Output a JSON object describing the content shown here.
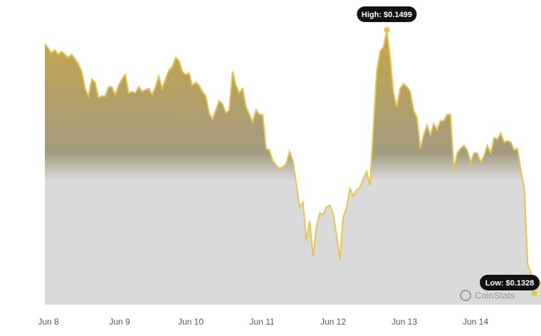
{
  "chart_data": {
    "type": "area",
    "brand": "CoinStats",
    "high": {
      "label": "High: $0.1499",
      "value": 0.1499
    },
    "low": {
      "label": "Low: $0.1328",
      "value": 0.1328
    },
    "line_color": "#e8c44c",
    "xticks": [
      "Jun 8",
      "Jun 9",
      "Jun 10",
      "Jun 11",
      "Jun 12",
      "Jun 13",
      "Jun 14"
    ],
    "values": [
      0.149,
      0.1487,
      0.1484,
      0.1486,
      0.1483,
      0.1485,
      0.1483,
      0.1481,
      0.1483,
      0.148,
      0.1477,
      0.1472,
      0.1461,
      0.1456,
      0.1467,
      0.1465,
      0.1455,
      0.1456,
      0.1456,
      0.1462,
      0.1462,
      0.1457,
      0.1463,
      0.1467,
      0.147,
      0.1458,
      0.1459,
      0.1458,
      0.1462,
      0.1459,
      0.146,
      0.1461,
      0.1457,
      0.1462,
      0.1469,
      0.1461,
      0.1467,
      0.1473,
      0.1475,
      0.1481,
      0.1479,
      0.1472,
      0.147,
      0.1471,
      0.1463,
      0.1465,
      0.1463,
      0.1459,
      0.1456,
      0.1445,
      0.1441,
      0.1447,
      0.1453,
      0.1451,
      0.1445,
      0.1447,
      0.1472,
      0.1463,
      0.1458,
      0.1461,
      0.1449,
      0.1444,
      0.1439,
      0.1447,
      0.1444,
      0.1444,
      0.1422,
      0.1421,
      0.1414,
      0.1411,
      0.1409,
      0.141,
      0.1412,
      0.142,
      0.1414,
      0.1399,
      0.1384,
      0.1387,
      0.1362,
      0.1375,
      0.1352,
      0.1371,
      0.138,
      0.1379,
      0.1384,
      0.1385,
      0.138,
      0.1366,
      0.135,
      0.1377,
      0.1384,
      0.1396,
      0.1391,
      0.1395,
      0.1397,
      0.1402,
      0.1407,
      0.1398,
      0.1435,
      0.1472,
      0.1485,
      0.1488,
      0.1499,
      0.1481,
      0.1458,
      0.1449,
      0.1461,
      0.1464,
      0.1462,
      0.1459,
      0.1447,
      0.1442,
      0.1422,
      0.1431,
      0.1437,
      0.1431,
      0.1438,
      0.1434,
      0.144,
      0.144,
      0.1444,
      0.1444,
      0.1409,
      0.1419,
      0.1422,
      0.1424,
      0.1421,
      0.1413,
      0.1419,
      0.1419,
      0.1413,
      0.1417,
      0.1424,
      0.1419,
      0.1429,
      0.1428,
      0.1432,
      0.1426,
      0.1427,
      0.1426,
      0.1421,
      0.1422,
      0.1408,
      0.1396,
      0.1347,
      0.1341,
      0.1328,
      0.1331,
      0.1336
    ]
  }
}
